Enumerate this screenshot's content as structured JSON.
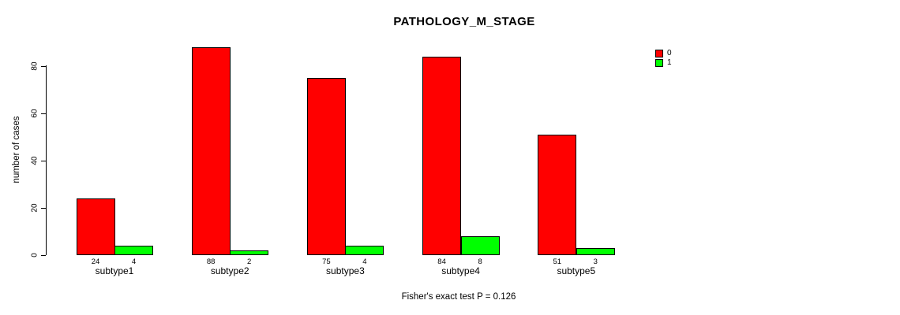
{
  "title": "PATHOLOGY_M_STAGE",
  "annotation": "Fisher's exact test P = 0.126",
  "chart_data": {
    "type": "bar",
    "title": "PATHOLOGY_M_STAGE",
    "xlabel": "",
    "ylabel": "number of cases",
    "categories": [
      "subtype1",
      "subtype2",
      "subtype3",
      "subtype4",
      "subtype5"
    ],
    "series": [
      {
        "name": "0",
        "color": "#ff0000",
        "values": [
          24,
          88,
          75,
          84,
          51
        ]
      },
      {
        "name": "1",
        "color": "#00ff00",
        "values": [
          4,
          2,
          4,
          8,
          3
        ]
      }
    ],
    "bar_value_labels_shown": true,
    "ylim": [
      0,
      88
    ],
    "yticks": [
      0,
      20,
      40,
      60,
      80
    ],
    "grid": false,
    "legend_position": "top-right",
    "legend_entries": [
      "0",
      "1"
    ],
    "annotation": "Fisher's exact test P = 0.126"
  }
}
